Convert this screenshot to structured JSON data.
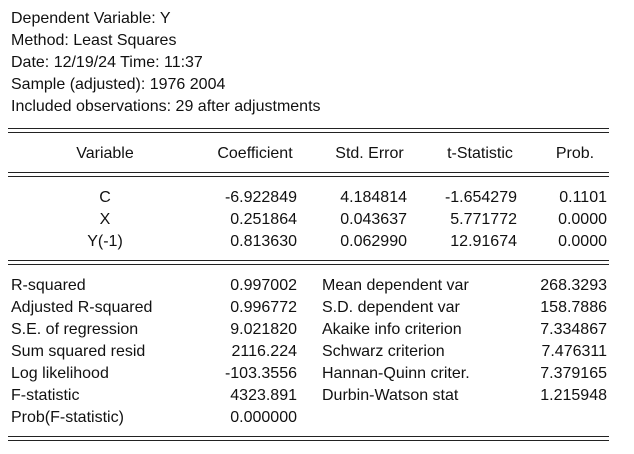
{
  "header": {
    "dependent": "Dependent Variable: Y",
    "method": "Method: Least Squares",
    "datetime": "Date: 12/19/24   Time: 11:37",
    "sample": "Sample (adjusted): 1976 2004",
    "observations": "Included observations: 29 after adjustments"
  },
  "columns": [
    "Variable",
    "Coefficient",
    "Std. Error",
    "t-Statistic",
    "Prob."
  ],
  "rows": [
    {
      "variable": "C",
      "coefficient": "-6.922849",
      "std_error": "4.184814",
      "t_stat": "-1.654279",
      "prob": "0.1101"
    },
    {
      "variable": "X",
      "coefficient": "0.251864",
      "std_error": "0.043637",
      "t_stat": "5.771772",
      "prob": "0.0000"
    },
    {
      "variable": "Y(-1)",
      "coefficient": "0.813630",
      "std_error": "0.062990",
      "t_stat": "12.91674",
      "prob": "0.0000"
    }
  ],
  "stats_left": [
    {
      "label": "R-squared",
      "value": "0.997002"
    },
    {
      "label": "Adjusted R-squared",
      "value": "0.996772"
    },
    {
      "label": "S.E. of regression",
      "value": "9.021820"
    },
    {
      "label": "Sum squared resid",
      "value": "2116.224"
    },
    {
      "label": "Log likelihood",
      "value": "-103.3556"
    },
    {
      "label": "F-statistic",
      "value": "4323.891"
    },
    {
      "label": "Prob(F-statistic)",
      "value": "0.000000"
    }
  ],
  "stats_right": [
    {
      "label": "Mean dependent var",
      "value": "268.3293"
    },
    {
      "label": "S.D. dependent var",
      "value": "158.7886"
    },
    {
      "label": "Akaike info criterion",
      "value": "7.334867"
    },
    {
      "label": "Schwarz criterion",
      "value": "7.476311"
    },
    {
      "label": "Hannan-Quinn criter.",
      "value": "7.379165"
    },
    {
      "label": "Durbin-Watson stat",
      "value": "1.215948"
    }
  ]
}
